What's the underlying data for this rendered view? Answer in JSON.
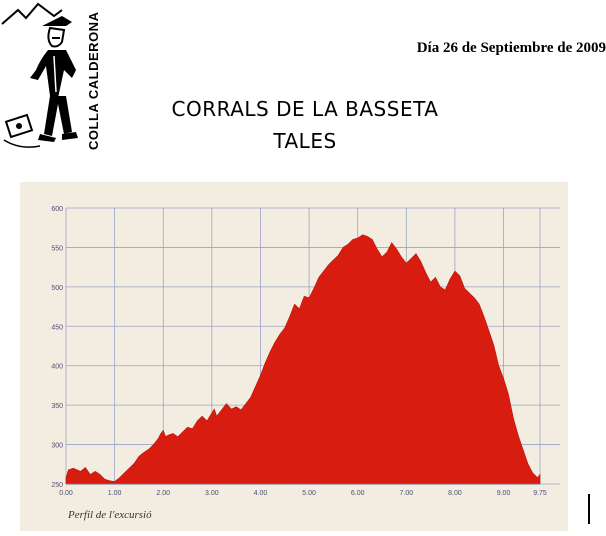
{
  "header": {
    "date": "Día 26 de Septiembre de 2009",
    "title_line1": "CORRALS DE LA BASSETA",
    "title_line2": "TALES"
  },
  "logo": {
    "text": "COLLA CALDERONA",
    "icon": "hiker-figure-icon"
  },
  "colors": {
    "paper": "#f3ece0",
    "grid": "#9aa4c8",
    "fill": "#d81d10",
    "axis_text": "#4c4f74",
    "caption": "#333333"
  },
  "chart_data": {
    "type": "area",
    "caption": "Perfil de l'excursió",
    "xlim": [
      0,
      9.75
    ],
    "ylim": [
      250,
      600
    ],
    "x_ticks": [
      "0.00",
      "1.00",
      "2.00",
      "3.00",
      "4.00",
      "5.00",
      "6.00",
      "7.00",
      "8.00",
      "9.00",
      "9.75"
    ],
    "y_ticks": [
      "250",
      "300",
      "350",
      "400",
      "450",
      "500",
      "550",
      "600"
    ],
    "grid": true,
    "series": [
      {
        "x": [
          0,
          0.05,
          0.15,
          0.3,
          0.4,
          0.5,
          0.6,
          0.7,
          0.8,
          0.9,
          1.0,
          1.1,
          1.2,
          1.3,
          1.4,
          1.5,
          1.6,
          1.7,
          1.8,
          1.9,
          1.95,
          2.0,
          2.05,
          2.1,
          2.2,
          2.3,
          2.4,
          2.5,
          2.6,
          2.7,
          2.8,
          2.9,
          3.0,
          3.05,
          3.1,
          3.2,
          3.3,
          3.4,
          3.5,
          3.6,
          3.7,
          3.8,
          3.9,
          4.0,
          4.1,
          4.2,
          4.3,
          4.4,
          4.5,
          4.6,
          4.7,
          4.8,
          4.9,
          5.0,
          5.1,
          5.2,
          5.3,
          5.4,
          5.5,
          5.6,
          5.7,
          5.8,
          5.9,
          6.0,
          6.1,
          6.2,
          6.3,
          6.4,
          6.5,
          6.6,
          6.7,
          6.8,
          6.9,
          7.0,
          7.1,
          7.2,
          7.3,
          7.4,
          7.5,
          7.6,
          7.7,
          7.8,
          7.9,
          8.0,
          8.1,
          8.2,
          8.3,
          8.4,
          8.5,
          8.6,
          8.7,
          8.8,
          8.9,
          9.0,
          9.1,
          9.2,
          9.3,
          9.4,
          9.5,
          9.6,
          9.7,
          9.75
        ],
        "y": [
          258,
          268,
          270,
          266,
          271,
          262,
          266,
          262,
          256,
          254,
          253,
          258,
          264,
          270,
          276,
          285,
          290,
          294,
          300,
          308,
          314,
          318,
          310,
          312,
          314,
          310,
          316,
          322,
          320,
          330,
          336,
          330,
          340,
          345,
          336,
          344,
          352,
          345,
          348,
          344,
          352,
          360,
          374,
          388,
          404,
          418,
          430,
          440,
          448,
          462,
          478,
          472,
          488,
          486,
          498,
          512,
          520,
          528,
          534,
          540,
          550,
          554,
          560,
          562,
          566,
          564,
          560,
          548,
          538,
          544,
          556,
          548,
          538,
          530,
          536,
          542,
          532,
          518,
          506,
          512,
          500,
          496,
          510,
          520,
          514,
          498,
          492,
          486,
          478,
          462,
          444,
          426,
          400,
          384,
          364,
          334,
          312,
          294,
          276,
          264,
          258,
          262
        ]
      }
    ]
  }
}
